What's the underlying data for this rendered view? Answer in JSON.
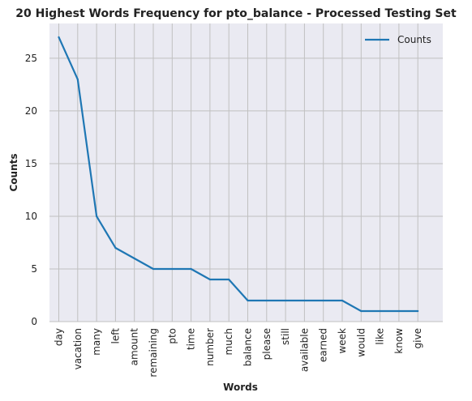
{
  "chart_data": {
    "type": "line",
    "title": "20 Highest Words Frequency for pto_balance - Processed Testing Set",
    "xlabel": "Words",
    "ylabel": "Counts",
    "categories": [
      "day",
      "vacation",
      "many",
      "left",
      "amount",
      "remaining",
      "pto",
      "time",
      "number",
      "much",
      "balance",
      "please",
      "still",
      "available",
      "earned",
      "week",
      "would",
      "like",
      "know",
      "give"
    ],
    "series": [
      {
        "name": "Counts",
        "values": [
          27,
          23,
          10,
          7,
          6,
          5,
          5,
          5,
          4,
          4,
          2,
          2,
          2,
          2,
          2,
          2,
          1,
          1,
          1,
          1
        ]
      }
    ],
    "ylim": [
      0,
      28.3
    ],
    "yticks": [
      0,
      5,
      10,
      15,
      20,
      25
    ],
    "grid": true,
    "legend": "top-right",
    "colors": {
      "line": "#1f77b4",
      "background": "#eaeaf2",
      "grid": "#c0c0c0"
    }
  }
}
